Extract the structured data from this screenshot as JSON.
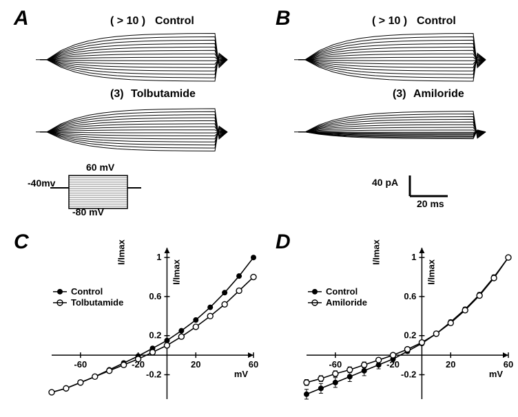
{
  "panelA": {
    "label": "A",
    "control": {
      "n": "( > 10 )",
      "name": "Control"
    },
    "treatment": {
      "n": "(3)",
      "name": "Tolbutamide"
    },
    "protocol": {
      "hold": "-40mv",
      "top": "60 mV",
      "bottom": "-80 mV"
    }
  },
  "panelB": {
    "label": "B",
    "control": {
      "n": "( > 10 )",
      "name": "Control"
    },
    "treatment": {
      "n": "(3)",
      "name": "Amiloride"
    },
    "scale": {
      "y": "40 pA",
      "x": "20 ms"
    }
  },
  "panelC": {
    "label": "C",
    "type": "line",
    "ylabel": "I/Imax",
    "xlabel": "mV",
    "xlim": [
      -80,
      60
    ],
    "ylim": [
      -0.45,
      1.1
    ],
    "xticks": [
      -60,
      -20,
      20,
      60
    ],
    "yticks": [
      -0.2,
      0.2,
      0.6,
      1.0
    ],
    "legend": [
      {
        "label": "Control",
        "marker": "filled",
        "color": "#000000"
      },
      {
        "label": "Tolbutamide",
        "marker": "open",
        "color": "#000000"
      }
    ],
    "series": {
      "control": {
        "x": [
          -80,
          -70,
          -60,
          -50,
          -40,
          -30,
          -20,
          -10,
          0,
          10,
          20,
          30,
          40,
          50,
          60
        ],
        "y": [
          -0.38,
          -0.34,
          -0.28,
          -0.22,
          -0.15,
          -0.08,
          -0.01,
          0.07,
          0.15,
          0.25,
          0.36,
          0.49,
          0.64,
          0.81,
          1.0
        ]
      },
      "tolbutamide": {
        "x": [
          -80,
          -70,
          -60,
          -50,
          -40,
          -30,
          -20,
          -10,
          0,
          10,
          20,
          30,
          40,
          50,
          60
        ],
        "y": [
          -0.38,
          -0.34,
          -0.28,
          -0.22,
          -0.16,
          -0.1,
          -0.04,
          0.03,
          0.1,
          0.19,
          0.29,
          0.4,
          0.52,
          0.66,
          0.8
        ]
      }
    },
    "line_color": "#000000",
    "background_color": "#ffffff",
    "marker_size": 4
  },
  "panelD": {
    "label": "D",
    "type": "line",
    "ylabel": "I/Imax",
    "xlabel": "mV",
    "xlim": [
      -80,
      60
    ],
    "ylim": [
      -0.45,
      1.1
    ],
    "xticks": [
      -60,
      -20,
      20,
      60
    ],
    "yticks": [
      -0.2,
      0.2,
      0.6,
      1.0
    ],
    "legend": [
      {
        "label": "Control",
        "marker": "filled",
        "color": "#000000"
      },
      {
        "label": "Amiloride",
        "marker": "open",
        "color": "#000000"
      }
    ],
    "series": {
      "control": {
        "x": [
          -80,
          -70,
          -60,
          -50,
          -40,
          -30,
          -20,
          -10,
          0,
          10,
          20,
          30,
          40,
          50,
          60
        ],
        "y": [
          -0.4,
          -0.34,
          -0.28,
          -0.22,
          -0.16,
          -0.1,
          -0.04,
          0.04,
          0.12,
          0.22,
          0.34,
          0.47,
          0.62,
          0.8,
          1.0
        ],
        "err": [
          0.05,
          0.05,
          0.05,
          0.05,
          0.05,
          0.04,
          0.03,
          0.02,
          0.02,
          0.02,
          0.02,
          0.02,
          0.02,
          0.02,
          0.02
        ]
      },
      "amiloride": {
        "x": [
          -80,
          -70,
          -60,
          -50,
          -40,
          -30,
          -20,
          -10,
          0,
          10,
          20,
          30,
          40,
          50,
          60
        ],
        "y": [
          -0.28,
          -0.24,
          -0.19,
          -0.15,
          -0.1,
          -0.05,
          0.0,
          0.06,
          0.13,
          0.22,
          0.33,
          0.46,
          0.61,
          0.79,
          1.0
        ],
        "err": [
          0.03,
          0.03,
          0.03,
          0.03,
          0.03,
          0.02,
          0.02,
          0.02,
          0.02,
          0.02,
          0.02,
          0.02,
          0.02,
          0.02,
          0.02
        ]
      }
    },
    "line_color": "#000000",
    "background_color": "#ffffff",
    "marker_size": 4
  }
}
